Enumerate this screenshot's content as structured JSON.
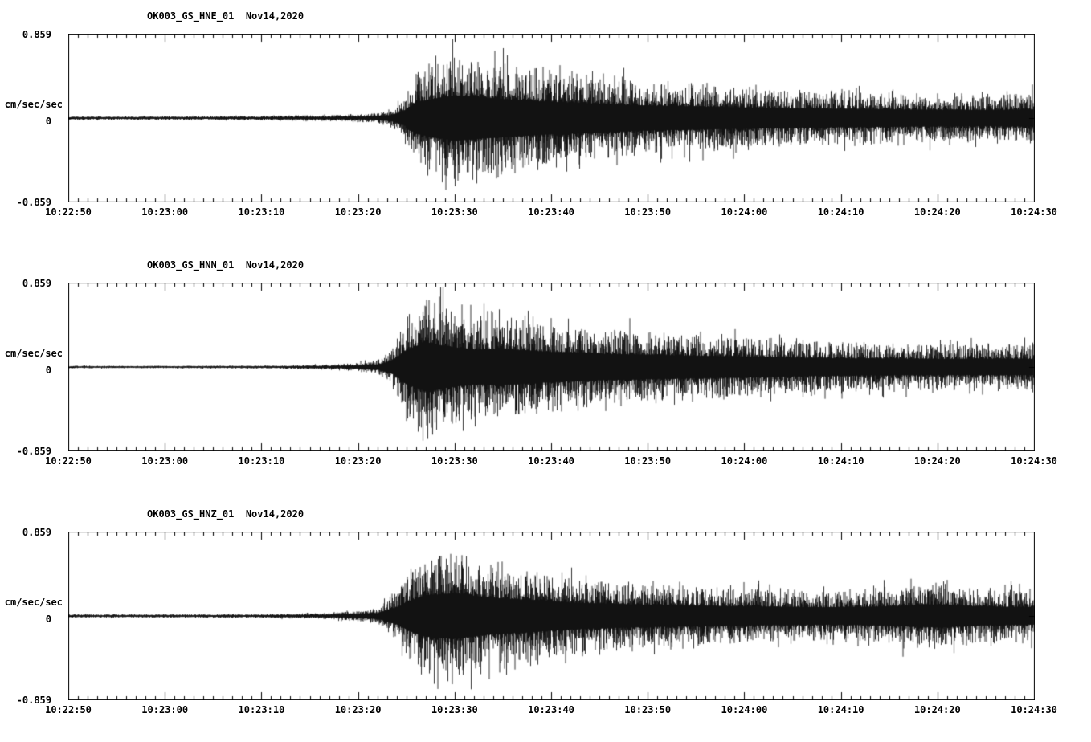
{
  "page": {
    "background": "#ffffff",
    "trace_color": "#000000",
    "text_color": "#000000"
  },
  "chart_data": [
    {
      "type": "line",
      "title": "OK003_GS_HNE_01  Nov14,2020",
      "station": "OK003_GS_HNE_01",
      "date": "Nov14,2020",
      "ylabel": "cm/sec/sec",
      "ylim": [
        -0.859,
        0.859
      ],
      "ytick_labels": [
        "0.859",
        "0",
        "-0.859"
      ],
      "x_tick_labels": [
        "10:22:50",
        "10:23:00",
        "10:23:10",
        "10:23:20",
        "10:23:30",
        "10:23:40",
        "10:23:50",
        "10:24:00",
        "10:24:10",
        "10:24:20",
        "10:24:30"
      ],
      "x_span_seconds": 100,
      "x_major_tick_seconds": 10,
      "x_minor_tick_seconds": 1,
      "seed": 101,
      "envelope_note": "approximate peak-amplitude envelope of the seismogram, cm/sec/sec vs seconds after 10:22:50",
      "envelope": {
        "t": [
          0,
          5,
          15,
          22,
          28,
          31,
          33,
          34.5,
          36,
          38,
          40,
          43,
          46,
          50,
          55,
          60,
          68,
          75,
          85,
          95,
          100
        ],
        "a": [
          0.025,
          0.022,
          0.025,
          0.03,
          0.04,
          0.05,
          0.08,
          0.2,
          0.55,
          0.68,
          0.78,
          0.7,
          0.64,
          0.56,
          0.5,
          0.43,
          0.38,
          0.33,
          0.3,
          0.28,
          0.3
        ]
      }
    },
    {
      "type": "line",
      "title": "OK003_GS_HNN_01  Nov14,2020",
      "station": "OK003_GS_HNN_01",
      "date": "Nov14,2020",
      "ylabel": "cm/sec/sec",
      "ylim": [
        -0.859,
        0.859
      ],
      "ytick_labels": [
        "0.859",
        "0",
        "-0.859"
      ],
      "x_tick_labels": [
        "10:22:50",
        "10:23:00",
        "10:23:10",
        "10:23:20",
        "10:23:30",
        "10:23:40",
        "10:23:50",
        "10:24:00",
        "10:24:10",
        "10:24:20",
        "10:24:30"
      ],
      "x_span_seconds": 100,
      "x_major_tick_seconds": 10,
      "x_minor_tick_seconds": 1,
      "seed": 202,
      "envelope_note": "approximate peak-amplitude envelope of the seismogram, cm/sec/sec vs seconds after 10:22:50",
      "envelope": {
        "t": [
          0,
          10,
          20,
          27,
          30,
          32,
          33.5,
          35,
          37,
          39,
          42,
          45,
          50,
          55,
          60,
          66,
          72,
          80,
          90,
          100
        ],
        "a": [
          0.015,
          0.015,
          0.02,
          0.03,
          0.05,
          0.09,
          0.22,
          0.6,
          0.85,
          0.72,
          0.6,
          0.62,
          0.52,
          0.46,
          0.42,
          0.38,
          0.34,
          0.3,
          0.28,
          0.28
        ]
      }
    },
    {
      "type": "line",
      "title": "OK003_GS_HNZ_01  Nov14,2020",
      "station": "OK003_GS_HNZ_01",
      "date": "Nov14,2020",
      "ylabel": "cm/sec/sec",
      "ylim": [
        -0.859,
        0.859
      ],
      "ytick_labels": [
        "0.859",
        "0",
        "-0.859"
      ],
      "x_tick_labels": [
        "10:22:50",
        "10:23:00",
        "10:23:10",
        "10:23:20",
        "10:23:30",
        "10:23:40",
        "10:23:50",
        "10:24:00",
        "10:24:10",
        "10:24:20",
        "10:24:30"
      ],
      "x_span_seconds": 100,
      "x_major_tick_seconds": 10,
      "x_minor_tick_seconds": 1,
      "seed": 303,
      "envelope_note": "approximate peak-amplitude envelope of the seismogram, cm/sec/sec vs seconds after 10:22:50",
      "envelope": {
        "t": [
          0,
          10,
          20,
          26,
          30,
          32,
          34,
          35.5,
          37,
          40,
          44,
          48,
          52,
          58,
          64,
          70,
          78,
          85,
          90,
          94,
          100
        ],
        "a": [
          0.02,
          0.02,
          0.025,
          0.035,
          0.06,
          0.1,
          0.3,
          0.55,
          0.72,
          0.78,
          0.62,
          0.55,
          0.46,
          0.4,
          0.36,
          0.33,
          0.3,
          0.33,
          0.4,
          0.33,
          0.3
        ]
      }
    }
  ]
}
